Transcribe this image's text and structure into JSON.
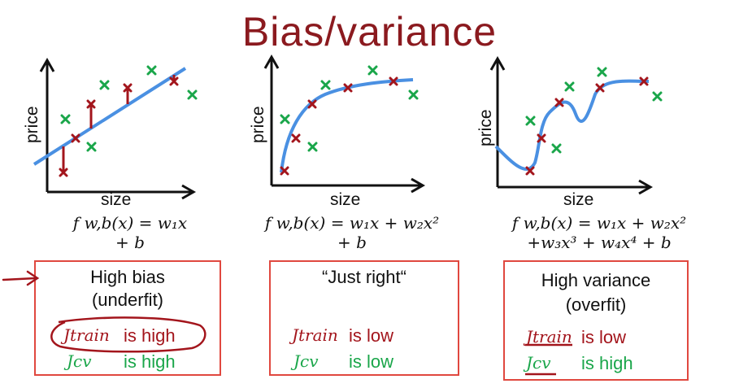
{
  "title": "Bias/variance",
  "colors": {
    "title": "#8b1a1f",
    "curve": "#4a90e2",
    "train": "#a3151c",
    "cv": "#1aa64a",
    "box": "#e0483f"
  },
  "panels": [
    {
      "xlabel": "size",
      "ylabel": "price",
      "formula_line1": "f w,b(x) = w₁x",
      "formula_line2": "+ b",
      "box_title_line1": "High bias",
      "box_title_line2": "(underfit)",
      "j_train": "Jtrain",
      "j_train_text": "is high",
      "j_cv": "Jcv",
      "j_cv_text": "is high"
    },
    {
      "xlabel": "size",
      "ylabel": "price",
      "formula_line1": "f w,b(x) = w₁x + w₂x²",
      "formula_line2": "+ b",
      "box_title_line1": "“Just right“",
      "box_title_line2": "",
      "j_train": "Jtrain",
      "j_train_text": "is low",
      "j_cv": "Jcv",
      "j_cv_text": "is low"
    },
    {
      "xlabel": "size",
      "ylabel": "price",
      "formula_line1": "f w,b(x) = w₁x + w₂x²",
      "formula_line2": "+w₃x³ + w₄x⁴ + b",
      "box_title_line1": "High variance",
      "box_title_line2": "(overfit)",
      "j_train": "Jtrain",
      "j_train_text": "is low",
      "j_cv": "Jcv",
      "j_cv_text": "is high"
    }
  ]
}
